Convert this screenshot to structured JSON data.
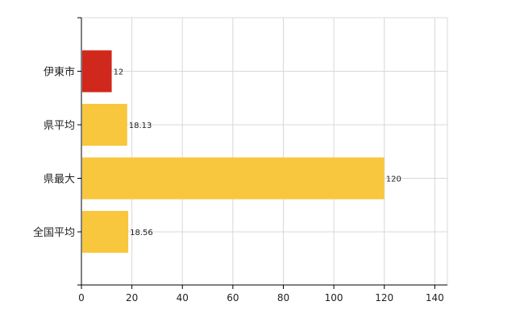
{
  "chart_data": {
    "type": "bar",
    "orientation": "horizontal",
    "categories": [
      "伊東市",
      "県平均",
      "県最大",
      "全国平均"
    ],
    "values": [
      12,
      18.13,
      120,
      18.56
    ],
    "data_labels": [
      "12",
      "18.13",
      "120",
      "18.56"
    ],
    "bar_colors": [
      "#d0281c",
      "#f8c73e",
      "#f8c73e",
      "#f8c73e"
    ],
    "xlim": [
      0,
      145
    ],
    "xticks": [
      0,
      20,
      40,
      60,
      80,
      100,
      120,
      140
    ],
    "xtick_labels": [
      "0",
      "20",
      "40",
      "60",
      "80",
      "100",
      "120",
      "140"
    ],
    "grid": true,
    "legend": "none"
  }
}
